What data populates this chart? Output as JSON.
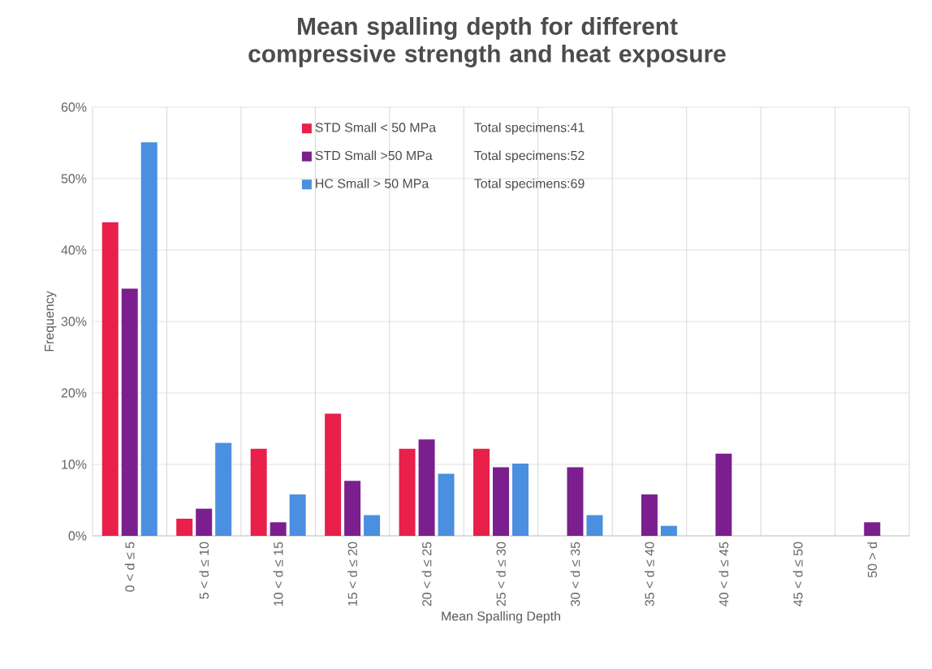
{
  "chart_data": {
    "type": "bar",
    "title": "Mean spalling depth for different compressive strength and heat exposure",
    "xlabel": "Mean Spalling Depth",
    "ylabel": "Frequency",
    "categories": [
      "0 < d ≤ 5",
      "5 < d ≤ 10",
      "10 < d ≤ 15",
      "15 < d ≤ 20",
      "20 < d ≤ 25",
      "25 < d ≤ 30",
      "30 < d ≤ 35",
      "35 < d ≤ 40",
      "40 < d ≤ 45",
      "45 < d ≤ 50",
      "50 > d"
    ],
    "series": [
      {
        "name": "STD Small < 50 MPa",
        "color": "#e8204a",
        "values": [
          43.9,
          2.4,
          12.2,
          17.1,
          12.2,
          12.2,
          0,
          0,
          0,
          0,
          0
        ]
      },
      {
        "name": "STD Small >50 MPa",
        "color": "#7b1f8e",
        "values": [
          34.6,
          3.8,
          1.9,
          7.7,
          13.5,
          9.6,
          9.6,
          5.8,
          11.5,
          0,
          1.9
        ]
      },
      {
        "name": "HC Small > 50 MPa",
        "color": "#4a8fe0",
        "values": [
          55.1,
          13.0,
          5.8,
          2.9,
          8.7,
          10.1,
          2.9,
          1.4,
          0,
          0,
          0
        ]
      }
    ],
    "annotations": [
      "Total specimens:41",
      "Total specimens:52",
      "Total specimens:69"
    ],
    "ylim": [
      0,
      60
    ],
    "yticks": [
      {
        "value": 0,
        "label": "0%"
      },
      {
        "value": 10,
        "label": "10%"
      },
      {
        "value": 20,
        "label": "20%"
      },
      {
        "value": 30,
        "label": "30%"
      },
      {
        "value": 40,
        "label": "40%"
      },
      {
        "value": 50,
        "label": "50%"
      },
      {
        "value": 60,
        "label": "60%"
      }
    ],
    "grid": true,
    "legend": "top"
  }
}
